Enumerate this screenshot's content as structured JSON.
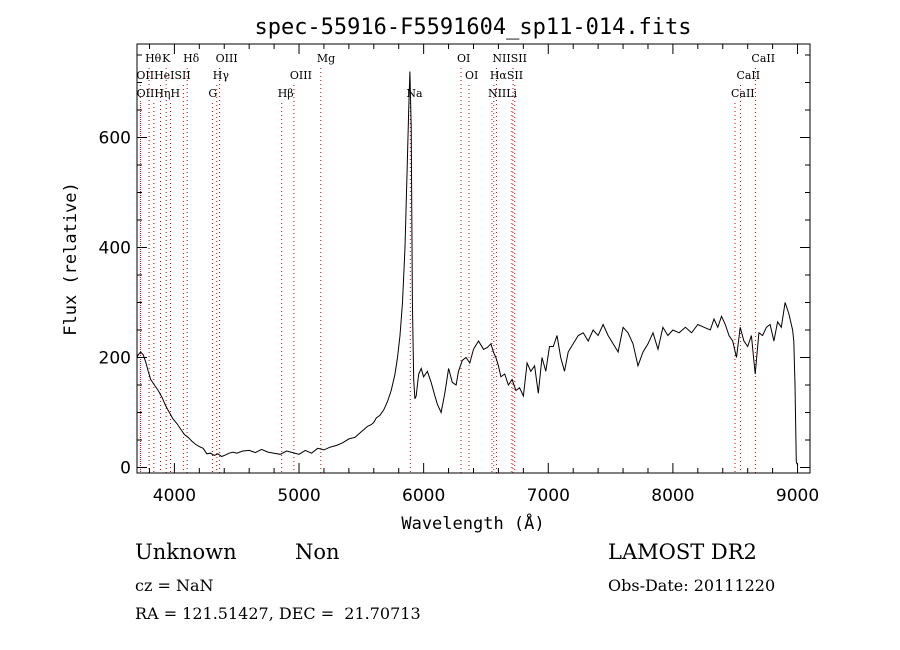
{
  "chart_data": {
    "type": "line",
    "title": "spec-55916-F5591604_sp11-014.fits",
    "xlabel": "Wavelength (Å)",
    "ylabel": "Flux (relative)",
    "xlim": [
      3700,
      9100
    ],
    "ylim": [
      -10,
      770
    ],
    "xticks": [
      4000,
      5000,
      6000,
      7000,
      8000,
      9000
    ],
    "yticks": [
      0,
      200,
      400,
      600
    ],
    "series": [
      {
        "x": [
          3700,
          3710,
          3730,
          3750,
          3770,
          3790,
          3810,
          3840,
          3870,
          3900,
          3930,
          3960,
          3990,
          4020,
          4050,
          4080,
          4110,
          4140,
          4170,
          4200,
          4230,
          4260,
          4290,
          4320,
          4350,
          4380,
          4410,
          4440,
          4470,
          4500,
          4550,
          4600,
          4650,
          4700,
          4750,
          4800,
          4850,
          4900,
          4950,
          5000,
          5050,
          5100,
          5150,
          5200,
          5250,
          5300,
          5350,
          5400,
          5450,
          5500,
          5550,
          5580,
          5600,
          5620,
          5650,
          5680,
          5710,
          5740,
          5770,
          5790,
          5810,
          5830,
          5850,
          5870,
          5880,
          5890,
          5900,
          5910,
          5920,
          5930,
          5940,
          5950,
          5960,
          5980,
          6000,
          6030,
          6060,
          6090,
          6110,
          6140,
          6170,
          6200,
          6230,
          6260,
          6280,
          6310,
          6340,
          6370,
          6400,
          6440,
          6480,
          6510,
          6540,
          6560,
          6580,
          6600,
          6620,
          6650,
          6680,
          6710,
          6740,
          6770,
          6800,
          6830,
          6860,
          6890,
          6920,
          6950,
          6980,
          7010,
          7040,
          7070,
          7100,
          7130,
          7160,
          7200,
          7240,
          7280,
          7320,
          7360,
          7400,
          7440,
          7480,
          7520,
          7560,
          7600,
          7640,
          7680,
          7720,
          7760,
          7800,
          7840,
          7880,
          7920,
          7960,
          8000,
          8050,
          8100,
          8150,
          8200,
          8250,
          8300,
          8330,
          8360,
          8390,
          8420,
          8450,
          8480,
          8510,
          8540,
          8570,
          8600,
          8630,
          8660,
          8690,
          8720,
          8750,
          8780,
          8810,
          8840,
          8870,
          8900,
          8930,
          8960,
          8970,
          8980,
          8990,
          9000
        ],
        "y": [
          200,
          205,
          210,
          205,
          192,
          175,
          160,
          150,
          140,
          128,
          112,
          100,
          88,
          80,
          70,
          60,
          55,
          48,
          42,
          38,
          35,
          25,
          26,
          22,
          25,
          20,
          23,
          26,
          28,
          26,
          30,
          31,
          27,
          33,
          28,
          26,
          24,
          30,
          27,
          24,
          31,
          26,
          35,
          32,
          37,
          40,
          45,
          52,
          55,
          65,
          75,
          78,
          82,
          90,
          95,
          105,
          120,
          140,
          170,
          200,
          240,
          300,
          400,
          560,
          650,
          720,
          620,
          300,
          160,
          125,
          130,
          150,
          170,
          180,
          165,
          175,
          155,
          130,
          115,
          100,
          135,
          180,
          155,
          150,
          175,
          195,
          200,
          190,
          215,
          230,
          215,
          218,
          225,
          210,
          200,
          185,
          165,
          170,
          150,
          160,
          140,
          145,
          130,
          190,
          175,
          185,
          135,
          200,
          175,
          220,
          220,
          240,
          200,
          175,
          210,
          225,
          240,
          245,
          230,
          250,
          240,
          260,
          240,
          225,
          210,
          255,
          245,
          225,
          185,
          210,
          225,
          245,
          215,
          255,
          240,
          250,
          245,
          255,
          245,
          260,
          255,
          250,
          270,
          255,
          275,
          260,
          240,
          230,
          200,
          255,
          230,
          220,
          240,
          170,
          245,
          240,
          255,
          260,
          230,
          265,
          255,
          300,
          280,
          250,
          230,
          150,
          10,
          5
        ]
      }
    ],
    "lines": {
      "row1": [
        {
          "label": "Hθ",
          "x": [
            3797
          ]
        },
        {
          "label": "K",
          "x": [
            3934
          ]
        },
        {
          "label": "Hδ",
          "x": [
            4102
          ]
        },
        {
          "label": "OIII",
          "x": [
            4363
          ]
        },
        {
          "label": "Mg",
          "x": [
            5175
          ]
        },
        {
          "label": "OI",
          "x": [
            6300
          ]
        },
        {
          "label": "NIISII",
          "x": [
            6584,
            6717
          ]
        },
        {
          "label": "CaII",
          "x": [
            8662
          ]
        }
      ],
      "row2": [
        {
          "label": "OIIHeISII",
          "x": [
            3727,
            3889,
            4072
          ]
        },
        {
          "label": "Hγ",
          "x": [
            4340
          ]
        },
        {
          "label": "OIII",
          "x": [
            4959
          ]
        },
        {
          "label": "OI",
          "x": [
            6364
          ]
        },
        {
          "label": "HαSII",
          "x": [
            6563,
            6731
          ]
        },
        {
          "label": "CaII",
          "x": [
            8542
          ]
        }
      ],
      "row3": [
        {
          "label": "OIIHηH",
          "x": [
            3729,
            3835,
            3969
          ]
        },
        {
          "label": "G",
          "x": [
            4305
          ]
        },
        {
          "label": "Hβ",
          "x": [
            4861
          ]
        },
        {
          "label": "Na",
          "x": [
            5893
          ]
        },
        {
          "label": "NIILi",
          "x": [
            6548,
            6708
          ]
        },
        {
          "label": "CaII",
          "x": [
            8498
          ]
        }
      ]
    },
    "grid": false,
    "legend": "none"
  },
  "info": {
    "class": "Unknown",
    "subclass": "Non",
    "survey": "LAMOST DR2",
    "cz": "cz = NaN",
    "obs_date": "Obs-Date: 20111220",
    "coords": "RA = 121.51427, DEC =  21.70713"
  },
  "colors": {
    "spectrum": "#000000",
    "marker": "#cc0000",
    "axis": "#000000"
  }
}
